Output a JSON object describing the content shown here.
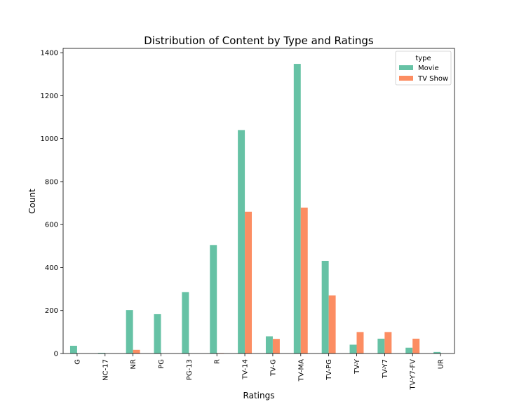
{
  "chart_data": {
    "type": "bar",
    "title": "Distribution of Content by Type and Ratings",
    "xlabel": "Ratings",
    "ylabel": "Count",
    "ylim": [
      0,
      1420
    ],
    "yticks": [
      0,
      200,
      400,
      600,
      800,
      1000,
      1200,
      1400
    ],
    "categories": [
      "G",
      "NC-17",
      "NR",
      "PG",
      "PG-13",
      "R",
      "TV-14",
      "TV-G",
      "TV-MA",
      "TV-PG",
      "TV-Y",
      "TV-Y7",
      "TV-Y7-FV",
      "UR"
    ],
    "series": [
      {
        "name": "Movie",
        "color": "#66c2a5",
        "values": [
          36,
          3,
          202,
          183,
          286,
          505,
          1040,
          80,
          1348,
          431,
          41,
          69,
          27,
          7
        ]
      },
      {
        "name": "TV Show",
        "color": "#fc8d62",
        "values": [
          0,
          0,
          17,
          0,
          0,
          2,
          660,
          68,
          679,
          270,
          100,
          100,
          69,
          0
        ]
      }
    ],
    "legend": {
      "title": "type",
      "position": "top-right"
    },
    "grid": false
  }
}
